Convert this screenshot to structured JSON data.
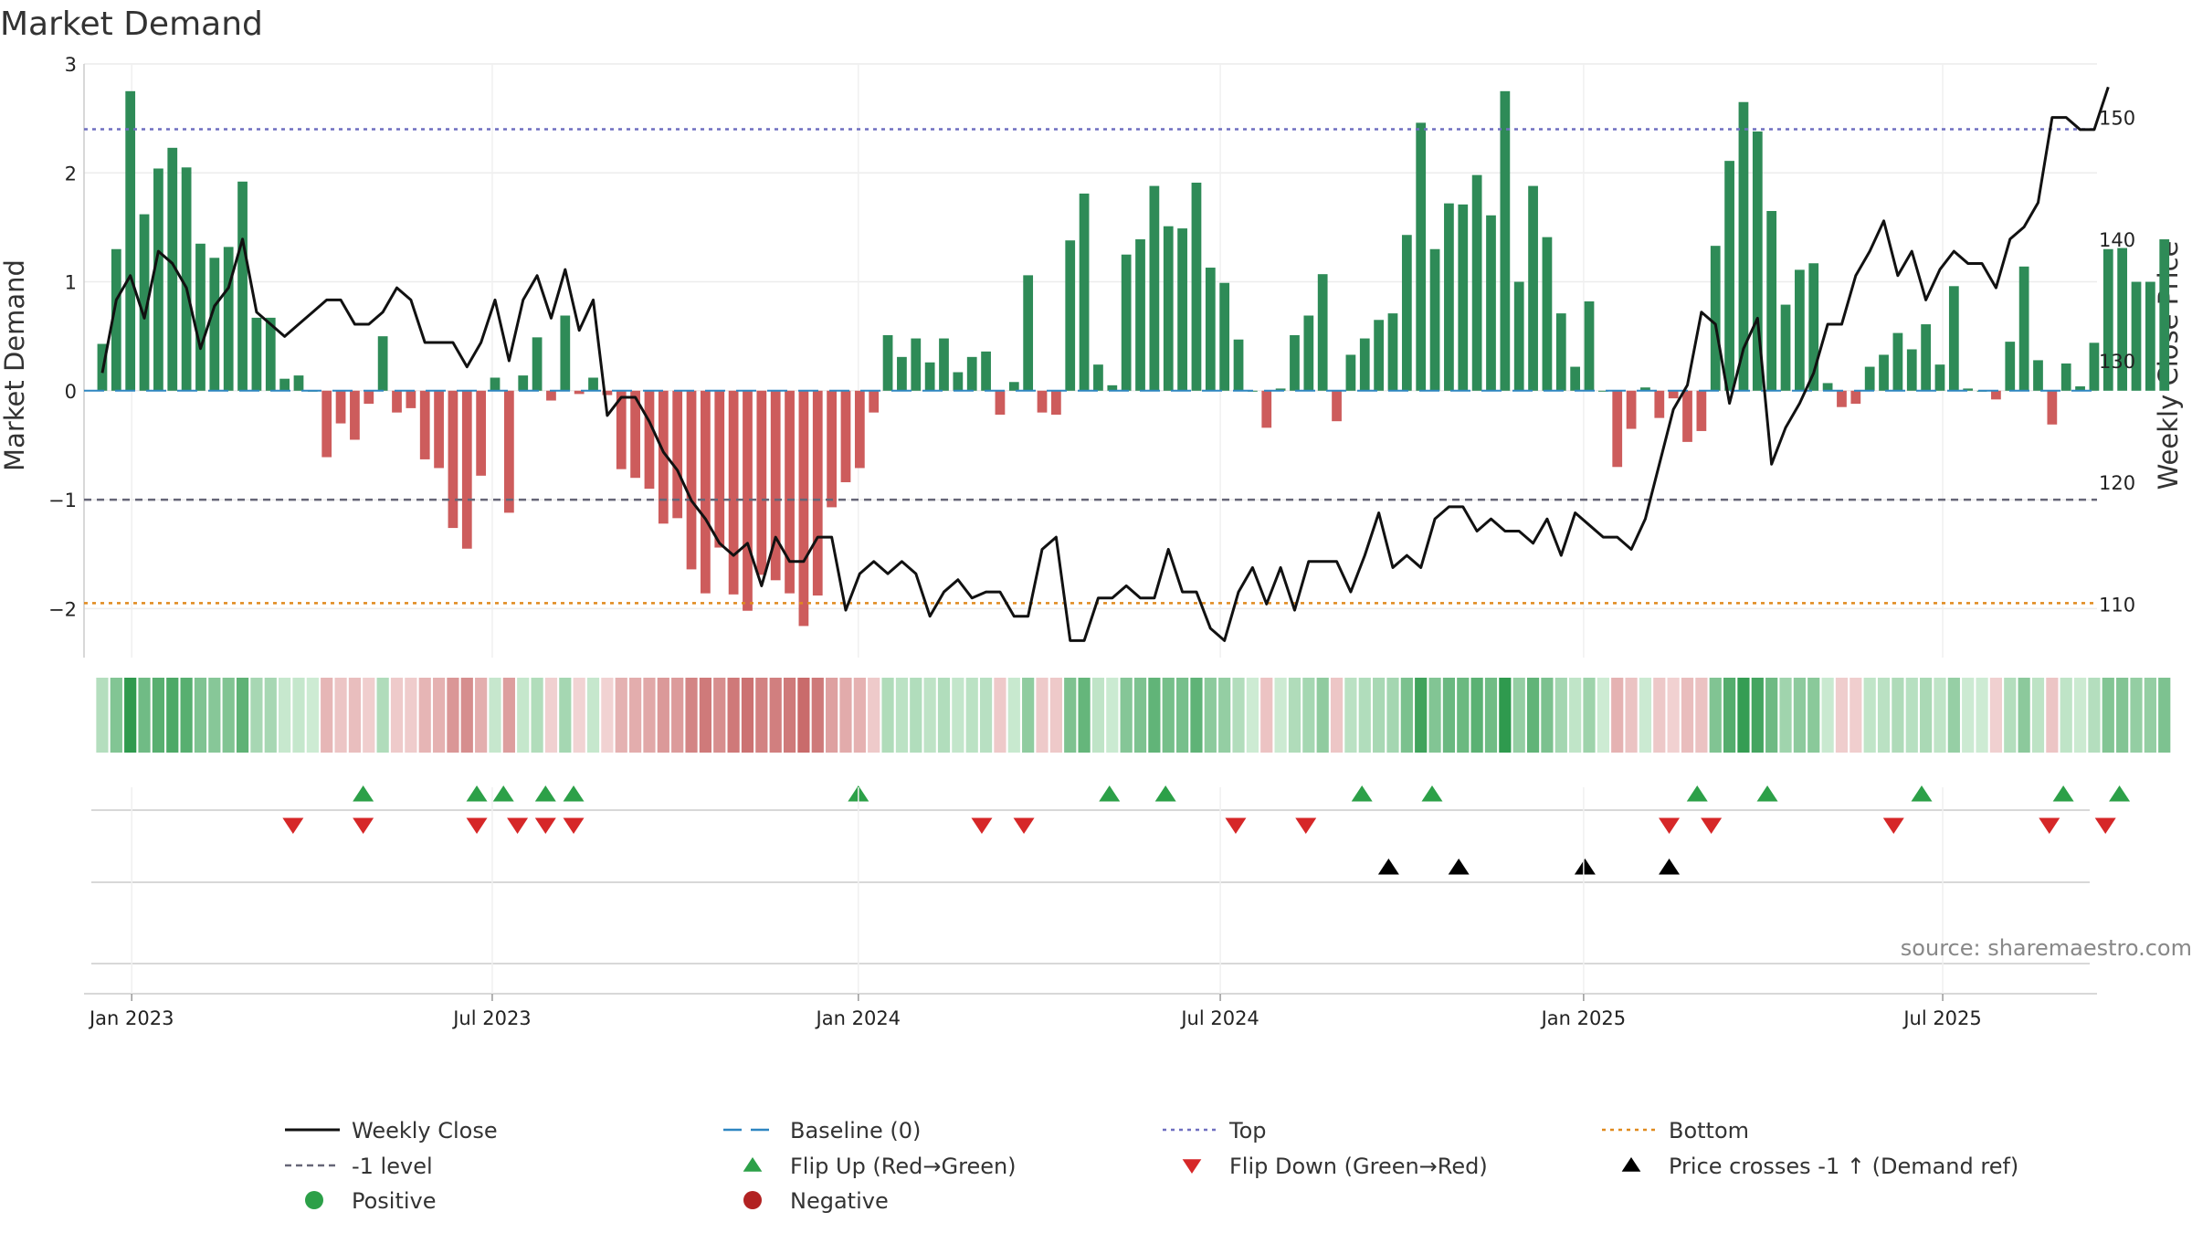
{
  "chart_data": {
    "type": "bar",
    "title": "Market Demand",
    "ylabel_left": "Market Demand",
    "ylabel_right": "Weekly Close Price",
    "ylim_left": [
      -2.45,
      3.0
    ],
    "ylim_right": [
      105.6,
      154.4
    ],
    "yticks_left": [
      {
        "value": 3,
        "label": "3"
      },
      {
        "value": 2,
        "label": "2"
      },
      {
        "value": 1,
        "label": "1"
      },
      {
        "value": 0,
        "label": "0"
      },
      {
        "value": -1,
        "label": "−1"
      },
      {
        "value": -2,
        "label": "−2"
      }
    ],
    "yticks_right": [
      {
        "value": 150,
        "label": "150"
      },
      {
        "value": 140,
        "label": "140"
      },
      {
        "value": 130,
        "label": "130"
      },
      {
        "value": 120,
        "label": "120"
      },
      {
        "value": 110,
        "label": "110"
      }
    ],
    "x_week_range": [
      -1.3,
      142.2
    ],
    "xticks": [
      {
        "week": 2.1,
        "label": "Jan 2023"
      },
      {
        "week": 27.8,
        "label": "Jul 2023"
      },
      {
        "week": 53.9,
        "label": "Jan 2024"
      },
      {
        "week": 79.7,
        "label": "Jul 2024"
      },
      {
        "week": 105.6,
        "label": "Jan 2025"
      },
      {
        "week": 131.2,
        "label": "Jul 2025"
      }
    ],
    "reference_lines": [
      {
        "name": "Top",
        "value": 2.4,
        "color": "#6f6fc0",
        "dash": "dot"
      },
      {
        "name": "-1 level",
        "value": -1,
        "color": "#666677",
        "dash": "dash"
      },
      {
        "name": "Bottom",
        "value": -1.95,
        "color": "#e08a1e",
        "dash": "dot"
      },
      {
        "name": "Baseline (0)",
        "value": 0,
        "color": "#2e86c1",
        "dash": "longdash"
      }
    ],
    "demand": [
      0.43,
      1.3,
      2.75,
      1.62,
      2.04,
      2.23,
      2.05,
      1.35,
      1.22,
      1.32,
      1.92,
      0.67,
      0.67,
      0.11,
      0.14,
      0,
      -0.61,
      -0.3,
      -0.45,
      -0.12,
      0.5,
      -0.2,
      -0.16,
      -0.63,
      -0.71,
      -1.26,
      -1.45,
      -0.78,
      0.12,
      -1.12,
      0.14,
      0.49,
      -0.09,
      0.69,
      -0.03,
      0.12,
      -0.04,
      -0.72,
      -0.8,
      -0.9,
      -1.22,
      -1.17,
      -1.64,
      -1.86,
      -1.44,
      -1.87,
      -2.02,
      -1.69,
      -1.74,
      -1.86,
      -2.16,
      -1.88,
      -1.07,
      -0.84,
      -0.71,
      -0.2,
      0.51,
      0.31,
      0.48,
      0.26,
      0.48,
      0.17,
      0.31,
      0.36,
      -0.22,
      0.08,
      1.06,
      -0.2,
      -0.22,
      1.38,
      1.81,
      0.24,
      0.05,
      1.25,
      1.39,
      1.88,
      1.51,
      1.49,
      1.91,
      1.13,
      0.99,
      0.47,
      0,
      -0.34,
      0.02,
      0.51,
      0.69,
      1.07,
      -0.28,
      0.33,
      0.48,
      0.65,
      0.71,
      1.43,
      2.46,
      1.3,
      1.72,
      1.71,
      1.98,
      1.61,
      2.75,
      1.0,
      1.88,
      1.41,
      0.71,
      0.22,
      0.82,
      0,
      -0.7,
      -0.35,
      0.03,
      -0.25,
      -0.07,
      -0.47,
      -0.37,
      1.33,
      2.11,
      2.65,
      2.38,
      1.65,
      0.79,
      1.11,
      1.17,
      0.07,
      -0.15,
      -0.12,
      0.22,
      0.33,
      0.53,
      0.38,
      0.61,
      0.24,
      0.96,
      0.02,
      0,
      -0.08,
      0.45,
      1.14,
      0.28,
      -0.31,
      0.25,
      0.04,
      0.44,
      1.3,
      1.31,
      1.0,
      1.0,
      1.39
    ],
    "weekly_close": [
      129,
      135,
      137,
      133.5,
      139,
      138,
      136,
      131,
      134.5,
      136,
      140,
      134,
      133,
      132,
      133,
      134,
      135,
      135,
      133,
      133,
      134,
      136,
      135,
      131.5,
      131.5,
      131.5,
      129.5,
      131.5,
      135,
      130,
      135,
      137,
      133.5,
      137.5,
      132.5,
      135,
      125.5,
      127,
      127,
      125,
      122.5,
      121,
      118.5,
      117,
      115,
      114,
      115,
      111.5,
      115.5,
      113.5,
      113.5,
      115.5,
      115.5,
      109.5,
      112.5,
      113.5,
      112.5,
      113.5,
      112.5,
      109,
      111,
      112,
      110.5,
      111,
      111,
      109,
      109,
      114.5,
      115.5,
      107,
      107,
      110.5,
      110.5,
      111.5,
      110.5,
      110.5,
      114.5,
      111,
      111,
      108,
      107,
      111,
      113,
      110,
      113,
      109.5,
      113.5,
      113.5,
      113.5,
      111,
      114,
      117.5,
      113,
      114,
      113,
      117,
      118,
      118,
      116,
      117,
      116,
      116,
      115,
      117,
      114,
      117.5,
      116.5,
      115.5,
      115.5,
      114.5,
      117,
      121.5,
      126,
      128,
      134,
      133,
      126.5,
      131,
      133.5,
      121.5,
      124.5,
      126.5,
      129,
      133,
      133,
      137,
      139,
      141.5,
      137,
      139,
      135,
      137.5,
      139,
      138,
      138,
      136,
      140,
      141,
      143,
      150,
      150,
      149,
      149,
      152.5
    ],
    "lines_weekly_close_color": "#111111",
    "flip_up_weeks": [
      18.6,
      26.7,
      28.6,
      31.6,
      33.6,
      53.9,
      71.8,
      75.8,
      89.8,
      94.8,
      113.7,
      118.7,
      129.7,
      139.8,
      143.8
    ],
    "flip_down_weeks": [
      13.6,
      18.6,
      26.7,
      29.6,
      31.6,
      33.6,
      62.7,
      65.7,
      80.8,
      85.8,
      111.7,
      114.7,
      127.7,
      138.8,
      142.8
    ],
    "price_cross_weeks": [
      91.7,
      96.7,
      105.7,
      111.7
    ],
    "legend": [
      {
        "label": "Weekly Close",
        "symbol": "solid-line",
        "color": "#111111"
      },
      {
        "label": "Baseline (0)",
        "symbol": "long-dash-line",
        "color": "#2e86c1"
      },
      {
        "label": "Top",
        "symbol": "dotted-line",
        "color": "#6f6fc0"
      },
      {
        "label": "Bottom",
        "symbol": "dotted-line",
        "color": "#e08a1e"
      },
      {
        "label": "-1 level",
        "symbol": "dashed-line",
        "color": "#666677"
      },
      {
        "label": "Flip Up (Red→Green)",
        "symbol": "triangle-up",
        "color": "#2ca048"
      },
      {
        "label": "Flip Down (Green→Red)",
        "symbol": "triangle-down",
        "color": "#d62728"
      },
      {
        "label": "Price crosses -1 ↑ (Demand ref)",
        "symbol": "triangle-up",
        "color": "#000000"
      },
      {
        "label": "Positive",
        "symbol": "circle",
        "color": "#2ca048"
      },
      {
        "label": "Negative",
        "symbol": "circle",
        "color": "#b22222"
      }
    ],
    "colors": {
      "positive_bar": "#2e8b57",
      "negative_bar": "#cd5c5c",
      "flip_up": "#2ca048",
      "flip_down": "#d62728",
      "price_cross": "#000000"
    }
  },
  "source": "source: sharemaestro.com"
}
